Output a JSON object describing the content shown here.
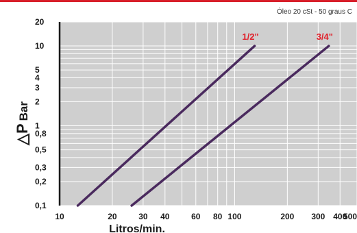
{
  "chart_data": {
    "type": "line",
    "note": "Óleo 20 cSt - 50 graus C",
    "xlabel": "Litros/min.",
    "ylabel_symbol": "△P",
    "ylabel_unit": "Bar",
    "x_scale": "log",
    "y_scale": "log",
    "xlim": [
      10,
      500
    ],
    "ylim": [
      0.1,
      20
    ],
    "grid": true,
    "x_ticks": [
      {
        "value": 10,
        "label": "10"
      },
      {
        "value": 20,
        "label": "20"
      },
      {
        "value": 30,
        "label": "30"
      },
      {
        "value": 40,
        "label": "40"
      },
      {
        "value": 60,
        "label": "60"
      },
      {
        "value": 80,
        "label": "80"
      },
      {
        "value": 100,
        "label": "100"
      },
      {
        "value": 200,
        "label": "200"
      },
      {
        "value": 300,
        "label": "300"
      },
      {
        "value": 400,
        "label": "400"
      },
      {
        "value": 500,
        "label": "500"
      }
    ],
    "y_ticks": [
      {
        "value": 0.1,
        "label": "0,1"
      },
      {
        "value": 0.2,
        "label": "0,2"
      },
      {
        "value": 0.3,
        "label": "0,3"
      },
      {
        "value": 0.5,
        "label": "0,5"
      },
      {
        "value": 0.8,
        "label": "0,8"
      },
      {
        "value": 1,
        "label": "1"
      },
      {
        "value": 2,
        "label": "2"
      },
      {
        "value": 3,
        "label": "3"
      },
      {
        "value": 4,
        "label": "4"
      },
      {
        "value": 5,
        "label": "5"
      },
      {
        "value": 10,
        "label": "10"
      },
      {
        "value": 20,
        "label": "20"
      }
    ],
    "x_gridlines": [
      10,
      20,
      30,
      40,
      50,
      60,
      70,
      80,
      90,
      100,
      200,
      300,
      400,
      500
    ],
    "y_gridlines": [
      0.1,
      0.2,
      0.3,
      0.4,
      0.5,
      0.6,
      0.7,
      0.8,
      0.9,
      1,
      2,
      3,
      4,
      5,
      6,
      7,
      8,
      9,
      10,
      20
    ],
    "series": [
      {
        "name": "1/2\"",
        "color": "#4a2a5e",
        "points": [
          [
            12.7,
            0.1
          ],
          [
            130,
            10
          ]
        ]
      },
      {
        "name": "3/4\"",
        "color": "#4a2a5e",
        "points": [
          [
            25.8,
            0.1
          ],
          [
            345,
            10
          ]
        ]
      }
    ]
  },
  "colors": {
    "plot_background": "#cfcfcf",
    "grid": "#ffffff",
    "axis": "#1a1a1a",
    "accent_rule": "#d81f2a",
    "series_label": "#e0202a"
  }
}
